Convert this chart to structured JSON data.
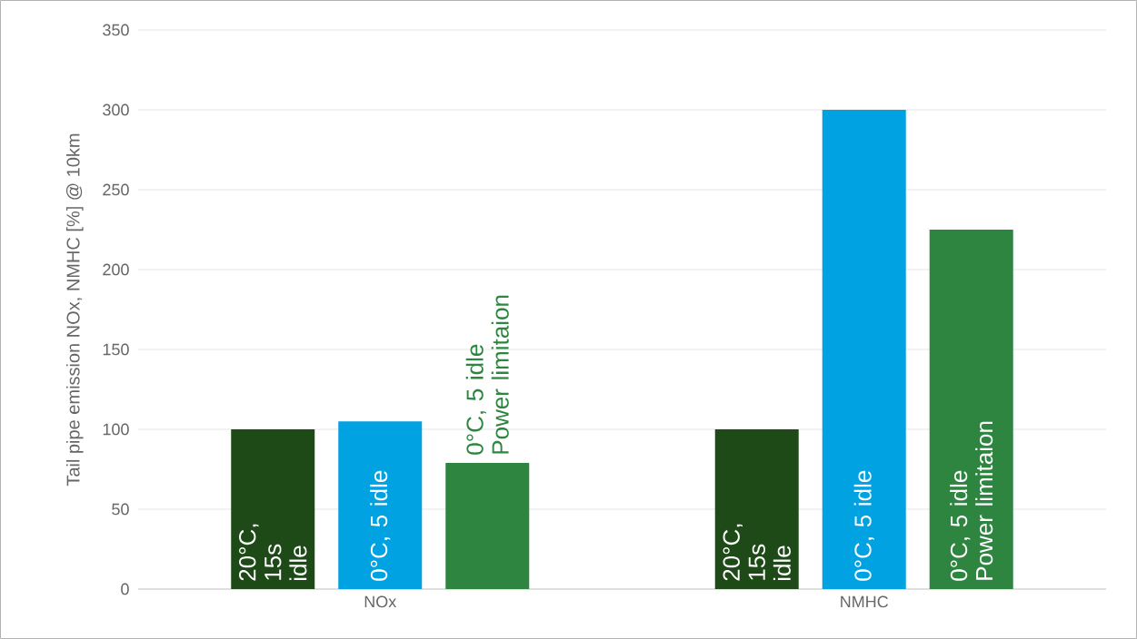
{
  "chart_data": {
    "type": "bar",
    "ylabel": "Tail pipe emission NOx, NMHC [%] @ 10km",
    "categories": [
      "NOx",
      "NMHC"
    ],
    "series": [
      {
        "name": "20°C, 15s idle",
        "color": "#1d4a16",
        "values": [
          100,
          100
        ]
      },
      {
        "name": "0°C, 5 idle",
        "color": "#00a2e2",
        "values": [
          105,
          300
        ]
      },
      {
        "name": "0°C, 5 idle Power limitaion",
        "color": "#2e8540",
        "values": [
          79,
          225
        ]
      }
    ],
    "ylim": [
      0,
      350
    ],
    "yticks": [
      0,
      50,
      100,
      150,
      200,
      250,
      300,
      350
    ],
    "grid": "y"
  }
}
